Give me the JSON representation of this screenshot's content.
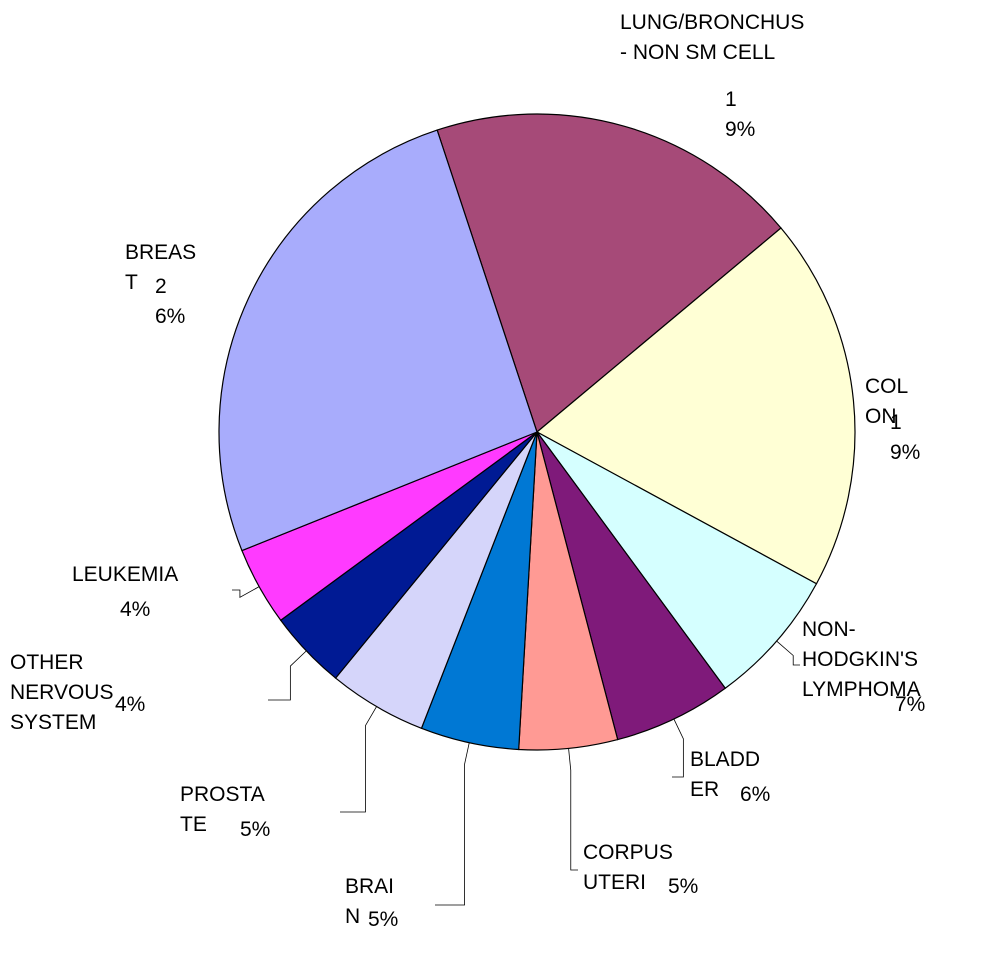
{
  "chart_data": {
    "type": "pie",
    "categories": [
      "LUNG/BRONCHUS - NON SM CELL",
      "COLON",
      "NON-HODGKIN'S LYMPHOMA",
      "BLADDER",
      "CORPUS UTERI",
      "BRAIN",
      "PROSTATE",
      "OTHER NERVOUS SYSTEM",
      "LEUKEMIA",
      "BREAST"
    ],
    "values": [
      19,
      19,
      7,
      6,
      5,
      5,
      5,
      4,
      4,
      26
    ],
    "value_labels": [
      "19%",
      "19%",
      "7%",
      "6%",
      "5%",
      "5%",
      "5%",
      "4%",
      "4%",
      "26%"
    ],
    "colors": [
      "#a64a78",
      "#ffffd5",
      "#d5ffff",
      "#7f1a7a",
      "#ff9a94",
      "#0078d4",
      "#d5d5fa",
      "#001a94",
      "#ff3aff",
      "#a8acfc"
    ]
  }
}
